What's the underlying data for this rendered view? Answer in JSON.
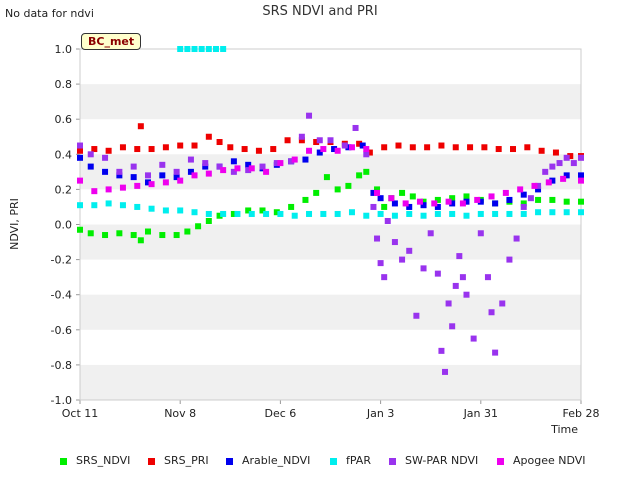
{
  "page": {
    "no_data_note": "No data for ndvi",
    "site_badge": "BC_met"
  },
  "chart_data": {
    "type": "scatter",
    "title": "SRS NDVI and PRI",
    "xlabel": "Time",
    "ylabel": "NDVI, PRI",
    "xlim": [
      "2023-10-11",
      "2024-02-28"
    ],
    "ylim": [
      -1.0,
      1.0
    ],
    "x_ticks": [
      "Oct 11",
      "Nov 8",
      "Dec 6",
      "Jan 3",
      "Jan 31",
      "Feb 28"
    ],
    "y_ticks": [
      "1.0",
      "0.8",
      "0.6",
      "0.4",
      "0.2",
      "0.0",
      "-0.2",
      "-0.4",
      "-0.6",
      "-0.8",
      "-1.0"
    ],
    "grid": "alternating horizontal bands",
    "legend_position": "bottom",
    "series": [
      {
        "name": "SRS_NDVI",
        "color": "#00ee00",
        "points": [
          [
            "2023-10-11",
            -0.03
          ],
          [
            "2023-10-14",
            -0.05
          ],
          [
            "2023-10-18",
            -0.06
          ],
          [
            "2023-10-22",
            -0.05
          ],
          [
            "2023-10-26",
            -0.06
          ],
          [
            "2023-10-28",
            -0.09
          ],
          [
            "2023-10-30",
            -0.04
          ],
          [
            "2023-11-03",
            -0.06
          ],
          [
            "2023-11-07",
            -0.06
          ],
          [
            "2023-11-10",
            -0.04
          ],
          [
            "2023-11-13",
            -0.01
          ],
          [
            "2023-11-16",
            0.02
          ],
          [
            "2023-11-19",
            0.05
          ],
          [
            "2023-11-23",
            0.06
          ],
          [
            "2023-11-27",
            0.08
          ],
          [
            "2023-12-01",
            0.08
          ],
          [
            "2023-12-05",
            0.07
          ],
          [
            "2023-12-09",
            0.1
          ],
          [
            "2023-12-13",
            0.14
          ],
          [
            "2023-12-16",
            0.18
          ],
          [
            "2023-12-19",
            0.27
          ],
          [
            "2023-12-22",
            0.2
          ],
          [
            "2023-12-25",
            0.22
          ],
          [
            "2023-12-28",
            0.28
          ],
          [
            "2023-12-30",
            0.3
          ],
          [
            "2024-01-02",
            0.2
          ],
          [
            "2024-01-04",
            0.1
          ],
          [
            "2024-01-06",
            0.15
          ],
          [
            "2024-01-09",
            0.18
          ],
          [
            "2024-01-12",
            0.16
          ],
          [
            "2024-01-15",
            0.13
          ],
          [
            "2024-01-19",
            0.14
          ],
          [
            "2024-01-23",
            0.15
          ],
          [
            "2024-01-27",
            0.16
          ],
          [
            "2024-01-31",
            0.14
          ],
          [
            "2024-02-04",
            0.12
          ],
          [
            "2024-02-08",
            0.13
          ],
          [
            "2024-02-12",
            0.12
          ],
          [
            "2024-02-16",
            0.14
          ],
          [
            "2024-02-20",
            0.14
          ],
          [
            "2024-02-24",
            0.13
          ],
          [
            "2024-02-28",
            0.13
          ]
        ]
      },
      {
        "name": "SRS_PRI",
        "color": "#ee0000",
        "points": [
          [
            "2023-10-11",
            0.42
          ],
          [
            "2023-10-15",
            0.43
          ],
          [
            "2023-10-19",
            0.42
          ],
          [
            "2023-10-23",
            0.44
          ],
          [
            "2023-10-27",
            0.43
          ],
          [
            "2023-10-28",
            0.56
          ],
          [
            "2023-10-31",
            0.43
          ],
          [
            "2023-11-04",
            0.44
          ],
          [
            "2023-11-08",
            0.45
          ],
          [
            "2023-11-12",
            0.45
          ],
          [
            "2023-11-16",
            0.5
          ],
          [
            "2023-11-19",
            0.47
          ],
          [
            "2023-11-22",
            0.44
          ],
          [
            "2023-11-26",
            0.43
          ],
          [
            "2023-11-30",
            0.42
          ],
          [
            "2023-12-04",
            0.43
          ],
          [
            "2023-12-08",
            0.48
          ],
          [
            "2023-12-12",
            0.48
          ],
          [
            "2023-12-16",
            0.47
          ],
          [
            "2023-12-20",
            0.47
          ],
          [
            "2023-12-24",
            0.46
          ],
          [
            "2023-12-28",
            0.46
          ],
          [
            "2023-12-31",
            0.41
          ],
          [
            "2024-01-04",
            0.44
          ],
          [
            "2024-01-08",
            0.45
          ],
          [
            "2024-01-12",
            0.44
          ],
          [
            "2024-01-16",
            0.44
          ],
          [
            "2024-01-20",
            0.45
          ],
          [
            "2024-01-24",
            0.44
          ],
          [
            "2024-01-28",
            0.44
          ],
          [
            "2024-02-01",
            0.44
          ],
          [
            "2024-02-05",
            0.43
          ],
          [
            "2024-02-09",
            0.43
          ],
          [
            "2024-02-13",
            0.44
          ],
          [
            "2024-02-17",
            0.42
          ],
          [
            "2024-02-21",
            0.41
          ],
          [
            "2024-02-25",
            0.39
          ],
          [
            "2024-02-28",
            0.39
          ]
        ]
      },
      {
        "name": "Arable_NDVI",
        "color": "#0000ee",
        "points": [
          [
            "2023-10-11",
            0.38
          ],
          [
            "2023-10-14",
            0.33
          ],
          [
            "2023-10-18",
            0.3
          ],
          [
            "2023-10-22",
            0.28
          ],
          [
            "2023-10-26",
            0.27
          ],
          [
            "2023-10-30",
            0.24
          ],
          [
            "2023-11-03",
            0.28
          ],
          [
            "2023-11-07",
            0.27
          ],
          [
            "2023-11-11",
            0.3
          ],
          [
            "2023-11-15",
            0.33
          ],
          [
            "2023-11-19",
            0.33
          ],
          [
            "2023-11-23",
            0.36
          ],
          [
            "2023-11-27",
            0.34
          ],
          [
            "2023-12-01",
            0.32
          ],
          [
            "2023-12-05",
            0.34
          ],
          [
            "2023-12-09",
            0.36
          ],
          [
            "2023-12-13",
            0.37
          ],
          [
            "2023-12-17",
            0.41
          ],
          [
            "2023-12-21",
            0.43
          ],
          [
            "2023-12-25",
            0.44
          ],
          [
            "2023-12-29",
            0.45
          ],
          [
            "2024-01-01",
            0.18
          ],
          [
            "2024-01-03",
            0.15
          ],
          [
            "2024-01-07",
            0.12
          ],
          [
            "2024-01-11",
            0.1
          ],
          [
            "2024-01-15",
            0.11
          ],
          [
            "2024-01-19",
            0.1
          ],
          [
            "2024-01-23",
            0.12
          ],
          [
            "2024-01-27",
            0.13
          ],
          [
            "2024-01-31",
            0.13
          ],
          [
            "2024-02-04",
            0.12
          ],
          [
            "2024-02-08",
            0.14
          ],
          [
            "2024-02-12",
            0.17
          ],
          [
            "2024-02-16",
            0.2
          ],
          [
            "2024-02-20",
            0.25
          ],
          [
            "2024-02-24",
            0.28
          ],
          [
            "2024-02-28",
            0.28
          ]
        ]
      },
      {
        "name": "fPAR",
        "color": "#00eeee",
        "points": [
          [
            "2023-10-11",
            0.11
          ],
          [
            "2023-10-15",
            0.11
          ],
          [
            "2023-10-19",
            0.12
          ],
          [
            "2023-10-23",
            0.11
          ],
          [
            "2023-10-27",
            0.1
          ],
          [
            "2023-10-31",
            0.09
          ],
          [
            "2023-11-04",
            0.08
          ],
          [
            "2023-11-08",
            0.08
          ],
          [
            "2023-11-12",
            0.07
          ],
          [
            "2023-11-16",
            0.06
          ],
          [
            "2023-11-20",
            0.06
          ],
          [
            "2023-11-24",
            0.06
          ],
          [
            "2023-11-28",
            0.06
          ],
          [
            "2023-12-02",
            0.06
          ],
          [
            "2023-12-06",
            0.06
          ],
          [
            "2023-12-10",
            0.05
          ],
          [
            "2023-12-14",
            0.06
          ],
          [
            "2023-12-18",
            0.06
          ],
          [
            "2023-12-22",
            0.06
          ],
          [
            "2023-12-26",
            0.07
          ],
          [
            "2023-12-30",
            0.05
          ],
          [
            "2024-01-03",
            0.06
          ],
          [
            "2024-01-07",
            0.05
          ],
          [
            "2024-01-11",
            0.06
          ],
          [
            "2024-01-15",
            0.05
          ],
          [
            "2024-01-19",
            0.06
          ],
          [
            "2024-01-23",
            0.06
          ],
          [
            "2024-01-27",
            0.05
          ],
          [
            "2024-01-31",
            0.06
          ],
          [
            "2024-02-04",
            0.06
          ],
          [
            "2024-02-08",
            0.06
          ],
          [
            "2024-02-12",
            0.06
          ],
          [
            "2024-02-16",
            0.07
          ],
          [
            "2024-02-20",
            0.07
          ],
          [
            "2024-02-24",
            0.07
          ],
          [
            "2024-02-28",
            0.07
          ],
          [
            "2023-11-08",
            1.0
          ],
          [
            "2023-11-10",
            1.0
          ],
          [
            "2023-11-12",
            1.0
          ],
          [
            "2023-11-14",
            1.0
          ],
          [
            "2023-11-16",
            1.0
          ],
          [
            "2023-11-18",
            1.0
          ],
          [
            "2023-11-20",
            1.0
          ]
        ]
      },
      {
        "name": "SW-PAR NDVI",
        "color": "#9933ee",
        "points": [
          [
            "2023-10-11",
            0.45
          ],
          [
            "2023-10-14",
            0.4
          ],
          [
            "2023-10-18",
            0.38
          ],
          [
            "2023-10-22",
            0.3
          ],
          [
            "2023-10-26",
            0.33
          ],
          [
            "2023-10-30",
            0.28
          ],
          [
            "2023-11-03",
            0.34
          ],
          [
            "2023-11-07",
            0.3
          ],
          [
            "2023-11-11",
            0.37
          ],
          [
            "2023-11-15",
            0.35
          ],
          [
            "2023-11-19",
            0.33
          ],
          [
            "2023-11-23",
            0.3
          ],
          [
            "2023-11-27",
            0.31
          ],
          [
            "2023-12-01",
            0.33
          ],
          [
            "2023-12-05",
            0.35
          ],
          [
            "2023-12-09",
            0.36
          ],
          [
            "2023-12-12",
            0.5
          ],
          [
            "2023-12-14",
            0.62
          ],
          [
            "2023-12-17",
            0.48
          ],
          [
            "2023-12-20",
            0.48
          ],
          [
            "2023-12-24",
            0.45
          ],
          [
            "2023-12-27",
            0.55
          ],
          [
            "2023-12-30",
            0.4
          ],
          [
            "2024-01-01",
            0.1
          ],
          [
            "2024-01-02",
            -0.08
          ],
          [
            "2024-01-03",
            -0.22
          ],
          [
            "2024-01-04",
            -0.3
          ],
          [
            "2024-01-05",
            0.02
          ],
          [
            "2024-01-07",
            -0.1
          ],
          [
            "2024-01-09",
            -0.2
          ],
          [
            "2024-01-11",
            -0.15
          ],
          [
            "2024-01-13",
            -0.52
          ],
          [
            "2024-01-15",
            -0.25
          ],
          [
            "2024-01-17",
            -0.05
          ],
          [
            "2024-01-19",
            -0.28
          ],
          [
            "2024-01-20",
            -0.72
          ],
          [
            "2024-01-22",
            -0.45
          ],
          [
            "2024-01-23",
            -0.58
          ],
          [
            "2024-01-24",
            -0.35
          ],
          [
            "2024-01-25",
            -0.18
          ],
          [
            "2024-01-27",
            -0.4
          ],
          [
            "2024-01-29",
            -0.65
          ],
          [
            "2024-01-31",
            -0.05
          ],
          [
            "2024-02-02",
            -0.3
          ],
          [
            "2024-02-04",
            -0.73
          ],
          [
            "2024-02-06",
            -0.45
          ],
          [
            "2024-02-08",
            -0.2
          ],
          [
            "2024-02-10",
            -0.08
          ],
          [
            "2024-02-12",
            0.1
          ],
          [
            "2024-02-14",
            0.15
          ],
          [
            "2024-02-16",
            0.22
          ],
          [
            "2024-02-18",
            0.3
          ],
          [
            "2024-02-20",
            0.33
          ],
          [
            "2024-02-22",
            0.35
          ],
          [
            "2024-02-24",
            0.38
          ],
          [
            "2024-02-26",
            0.35
          ],
          [
            "2024-02-28",
            0.38
          ],
          [
            "2024-01-21",
            -0.84
          ],
          [
            "2024-02-03",
            -0.5
          ],
          [
            "2024-01-26",
            -0.3
          ]
        ]
      },
      {
        "name": "Apogee NDVI",
        "color": "#ee00ee",
        "points": [
          [
            "2023-10-11",
            0.25
          ],
          [
            "2023-10-15",
            0.19
          ],
          [
            "2023-10-19",
            0.2
          ],
          [
            "2023-10-23",
            0.21
          ],
          [
            "2023-10-27",
            0.22
          ],
          [
            "2023-10-31",
            0.23
          ],
          [
            "2023-11-04",
            0.24
          ],
          [
            "2023-11-08",
            0.25
          ],
          [
            "2023-11-12",
            0.28
          ],
          [
            "2023-11-16",
            0.29
          ],
          [
            "2023-11-20",
            0.31
          ],
          [
            "2023-11-24",
            0.32
          ],
          [
            "2023-11-28",
            0.32
          ],
          [
            "2023-12-02",
            0.3
          ],
          [
            "2023-12-06",
            0.35
          ],
          [
            "2023-12-10",
            0.37
          ],
          [
            "2023-12-14",
            0.42
          ],
          [
            "2023-12-18",
            0.43
          ],
          [
            "2023-12-22",
            0.42
          ],
          [
            "2023-12-26",
            0.44
          ],
          [
            "2023-12-30",
            0.43
          ],
          [
            "2024-01-02",
            0.18
          ],
          [
            "2024-01-06",
            0.15
          ],
          [
            "2024-01-10",
            0.12
          ],
          [
            "2024-01-14",
            0.13
          ],
          [
            "2024-01-18",
            0.12
          ],
          [
            "2024-01-22",
            0.13
          ],
          [
            "2024-01-26",
            0.12
          ],
          [
            "2024-01-30",
            0.14
          ],
          [
            "2024-02-03",
            0.16
          ],
          [
            "2024-02-07",
            0.18
          ],
          [
            "2024-02-11",
            0.2
          ],
          [
            "2024-02-15",
            0.22
          ],
          [
            "2024-02-19",
            0.24
          ],
          [
            "2024-02-23",
            0.26
          ],
          [
            "2024-02-28",
            0.25
          ]
        ]
      }
    ]
  }
}
